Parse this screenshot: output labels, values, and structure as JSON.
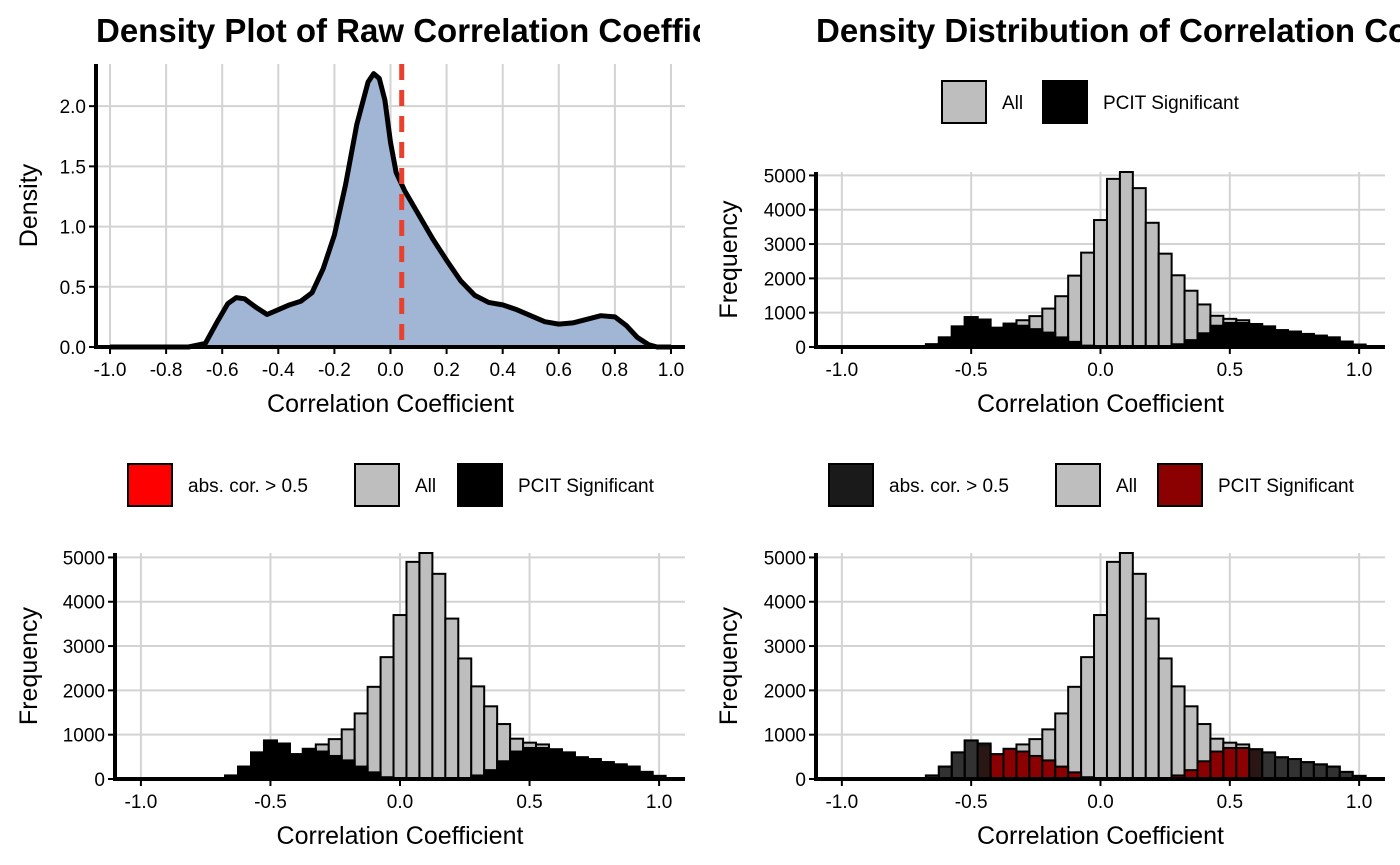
{
  "chart_data": [
    {
      "id": "p1",
      "type": "area",
      "title": "Density Plot of Raw Correlation Coefficients",
      "xlabel": "Correlation Coefficient",
      "ylabel": "Density",
      "xlim": [
        -1.05,
        1.05
      ],
      "ylim": [
        0,
        2.35
      ],
      "xticks": [
        -1.0,
        -0.8,
        -0.6,
        -0.4,
        -0.2,
        0.0,
        0.2,
        0.4,
        0.6,
        0.8,
        1.0
      ],
      "xtick_labels": [
        "-1.0",
        "-0.8",
        "-0.6",
        "-0.4",
        "-0.2",
        "0.0",
        "0.2",
        "0.4",
        "0.6",
        "0.8",
        "1.0"
      ],
      "yticks": [
        0,
        0.5,
        1.0,
        1.5,
        2.0
      ],
      "ytick_labels": [
        "0.0",
        "0.5",
        "1.0",
        "1.5",
        "2.0"
      ],
      "fill_color": "#a0b6d4",
      "line_color": "#000000",
      "vline": {
        "x": 0.04,
        "color": "#e8402c"
      },
      "x": [
        -0.72,
        -0.66,
        -0.62,
        -0.58,
        -0.55,
        -0.52,
        -0.48,
        -0.44,
        -0.4,
        -0.36,
        -0.32,
        -0.28,
        -0.24,
        -0.2,
        -0.16,
        -0.12,
        -0.08,
        -0.06,
        -0.04,
        -0.02,
        0.0,
        0.02,
        0.05,
        0.1,
        0.15,
        0.2,
        0.25,
        0.3,
        0.35,
        0.4,
        0.45,
        0.5,
        0.55,
        0.6,
        0.65,
        0.7,
        0.75,
        0.8,
        0.84,
        0.88,
        0.92,
        0.95
      ],
      "y": [
        0.0,
        0.03,
        0.2,
        0.36,
        0.41,
        0.4,
        0.33,
        0.27,
        0.31,
        0.35,
        0.38,
        0.45,
        0.65,
        0.93,
        1.35,
        1.85,
        2.2,
        2.27,
        2.23,
        2.05,
        1.7,
        1.45,
        1.3,
        1.1,
        0.9,
        0.72,
        0.55,
        0.43,
        0.37,
        0.35,
        0.31,
        0.26,
        0.21,
        0.19,
        0.2,
        0.23,
        0.26,
        0.25,
        0.18,
        0.08,
        0.02,
        0.0
      ]
    },
    {
      "id": "p2",
      "type": "bar",
      "title": "Density Distribution of Correlation Coefficients",
      "xlabel": "Correlation Coefficient",
      "ylabel": "Frequency",
      "xlim": [
        -1.1,
        1.1
      ],
      "ylim": [
        0,
        5100
      ],
      "xticks": [
        -1.0,
        -0.5,
        0.0,
        0.5,
        1.0
      ],
      "xtick_labels": [
        "-1.0",
        "-0.5",
        "0.0",
        "0.5",
        "1.0"
      ],
      "yticks": [
        0,
        1000,
        2000,
        3000,
        4000,
        5000
      ],
      "ytick_labels": [
        "0",
        "1000",
        "2000",
        "3000",
        "4000",
        "5000"
      ],
      "bin_start": -0.675,
      "bin_width": 0.05,
      "legend": [
        {
          "label": "All",
          "color": "#bebebe"
        },
        {
          "label": "PCIT Significant",
          "color": "#000000"
        }
      ],
      "series": [
        {
          "name": "All",
          "color": "#bebebe",
          "values": [
            80,
            280,
            600,
            870,
            800,
            560,
            680,
            780,
            900,
            1120,
            1480,
            2080,
            2750,
            3700,
            4900,
            5100,
            4630,
            3620,
            2720,
            2090,
            1640,
            1240,
            910,
            820,
            780,
            670,
            600,
            490,
            450,
            380,
            330,
            280,
            160,
            70
          ]
        },
        {
          "name": "PCIT Significant",
          "color": "#000000",
          "values": [
            80,
            280,
            600,
            870,
            800,
            560,
            680,
            620,
            520,
            420,
            280,
            150,
            40,
            20,
            10,
            5,
            5,
            10,
            20,
            80,
            200,
            400,
            620,
            700,
            700,
            670,
            600,
            490,
            450,
            380,
            330,
            280,
            160,
            70
          ]
        }
      ]
    },
    {
      "id": "p3",
      "type": "bar",
      "title": "",
      "xlabel": "Correlation Coefficient",
      "ylabel": "Frequency",
      "xlim": [
        -1.1,
        1.1
      ],
      "ylim": [
        0,
        5100
      ],
      "xticks": [
        -1.0,
        -0.5,
        0.0,
        0.5,
        1.0
      ],
      "xtick_labels": [
        "-1.0",
        "-0.5",
        "0.0",
        "0.5",
        "1.0"
      ],
      "yticks": [
        0,
        1000,
        2000,
        3000,
        4000,
        5000
      ],
      "ytick_labels": [
        "0",
        "1000",
        "2000",
        "3000",
        "4000",
        "5000"
      ],
      "bin_start": -0.675,
      "bin_width": 0.05,
      "legend": [
        {
          "label": "abs. cor. > 0.5",
          "color": "#ff0000"
        },
        {
          "label": "All",
          "color": "#bebebe"
        },
        {
          "label": "PCIT Significant",
          "color": "#000000"
        }
      ],
      "series": [
        {
          "name": "All",
          "color": "#bebebe",
          "values": [
            80,
            280,
            600,
            870,
            800,
            560,
            680,
            780,
            900,
            1120,
            1480,
            2080,
            2750,
            3700,
            4900,
            5100,
            4630,
            3620,
            2720,
            2090,
            1640,
            1240,
            910,
            820,
            780,
            670,
            600,
            490,
            450,
            380,
            330,
            280,
            160,
            70
          ]
        },
        {
          "name": "PCIT Significant",
          "color": "#000000",
          "values": [
            80,
            280,
            600,
            870,
            800,
            560,
            680,
            620,
            520,
            420,
            280,
            150,
            40,
            20,
            10,
            5,
            5,
            10,
            20,
            80,
            200,
            400,
            620,
            700,
            700,
            670,
            600,
            490,
            450,
            380,
            330,
            280,
            160,
            70
          ]
        }
      ]
    },
    {
      "id": "p4",
      "type": "bar",
      "title": "",
      "xlabel": "Correlation Coefficient",
      "ylabel": "Frequency",
      "xlim": [
        -1.1,
        1.1
      ],
      "ylim": [
        0,
        5100
      ],
      "xticks": [
        -1.0,
        -0.5,
        0.0,
        0.5,
        1.0
      ],
      "xtick_labels": [
        "-1.0",
        "-0.5",
        "0.0",
        "0.5",
        "1.0"
      ],
      "yticks": [
        0,
        1000,
        2000,
        3000,
        4000,
        5000
      ],
      "ytick_labels": [
        "0",
        "1000",
        "2000",
        "3000",
        "4000",
        "5000"
      ],
      "bin_start": -0.675,
      "bin_width": 0.05,
      "legend": [
        {
          "label": "abs. cor. > 0.5",
          "color": "#1a1a1a"
        },
        {
          "label": "All",
          "color": "#bebebe"
        },
        {
          "label": "PCIT Significant",
          "color": "#8b0000"
        }
      ],
      "series": [
        {
          "name": "All",
          "color": "#bebebe",
          "values": [
            80,
            280,
            600,
            870,
            800,
            560,
            680,
            780,
            900,
            1120,
            1480,
            2080,
            2750,
            3700,
            4900,
            5100,
            4630,
            3620,
            2720,
            2090,
            1640,
            1240,
            910,
            820,
            780,
            670,
            600,
            490,
            450,
            380,
            330,
            280,
            160,
            70
          ]
        },
        {
          "name": "PCIT Significant",
          "color": "#8b0000",
          "values": [
            0,
            0,
            0,
            0,
            750,
            560,
            680,
            620,
            520,
            420,
            280,
            150,
            40,
            20,
            10,
            5,
            5,
            10,
            20,
            80,
            200,
            400,
            620,
            700,
            700,
            670,
            0,
            0,
            0,
            0,
            0,
            0,
            0,
            0
          ]
        },
        {
          "name": "abs. cor. > 0.5",
          "color": "#1a1a1a",
          "alpha": 0.85,
          "values": [
            80,
            280,
            600,
            870,
            800,
            0,
            0,
            0,
            0,
            0,
            0,
            0,
            0,
            0,
            0,
            0,
            0,
            0,
            0,
            0,
            0,
            0,
            0,
            0,
            0,
            670,
            600,
            490,
            450,
            380,
            330,
            280,
            160,
            70
          ]
        }
      ]
    }
  ]
}
